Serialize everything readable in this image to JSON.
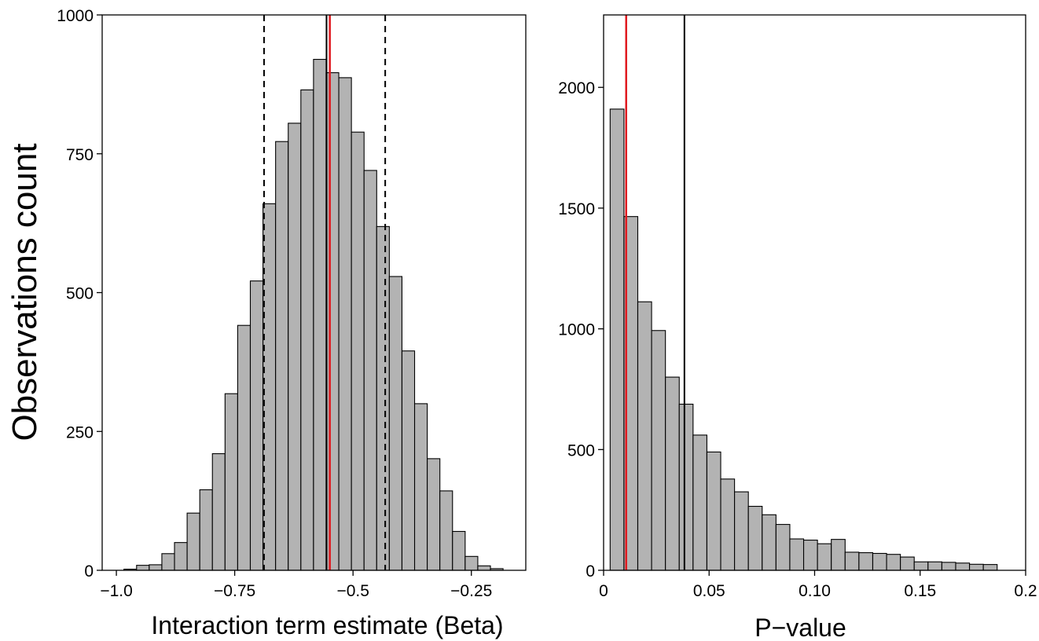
{
  "figure": {
    "ylabel": "Observations count"
  },
  "chart_data": [
    {
      "type": "bar",
      "subtype": "histogram",
      "xlabel": "Interaction term estimate (Beta)",
      "ylabel": "Observations count",
      "xlim": [
        -1.03,
        -0.135
      ],
      "ylim": [
        0,
        1000
      ],
      "xticks": [
        -1.0,
        -0.75,
        -0.5,
        -0.25
      ],
      "xtick_labels": [
        "−1.0",
        "−0.75",
        "−0.5",
        "−0.25"
      ],
      "yticks": [
        0,
        250,
        500,
        750,
        1000
      ],
      "ytick_labels": [
        "0",
        "250",
        "500",
        "750",
        "1000"
      ],
      "bin_width": 0.0267,
      "bin_start": -0.984,
      "values": [
        2,
        9,
        10,
        30,
        50,
        103,
        145,
        210,
        318,
        441,
        521,
        660,
        772,
        805,
        865,
        920,
        896,
        887,
        789,
        720,
        619,
        529,
        395,
        300,
        201,
        143,
        70,
        25,
        8,
        3
      ],
      "bar_fill": "#b3b3b3",
      "bar_stroke": "#000000",
      "vlines": [
        {
          "x": -0.688,
          "color": "#000000",
          "style": "dashed"
        },
        {
          "x": -0.432,
          "color": "#000000",
          "style": "dashed"
        },
        {
          "x": -0.556,
          "color": "#000000",
          "style": "solid"
        },
        {
          "x": -0.549,
          "color": "#e0191f",
          "style": "solid"
        }
      ],
      "grid": false,
      "legend": "none"
    },
    {
      "type": "bar",
      "subtype": "histogram",
      "xlabel": "P−value",
      "ylabel": "",
      "xlim": [
        0,
        0.2
      ],
      "ylim": [
        0,
        2300
      ],
      "xticks": [
        0,
        0.05,
        0.1,
        0.15,
        0.2
      ],
      "xtick_labels": [
        "0",
        "0.05",
        "0.10",
        "0.15",
        "0.2"
      ],
      "yticks": [
        0,
        500,
        1000,
        1500,
        2000
      ],
      "ytick_labels": [
        "0",
        "500",
        "1000",
        "1500",
        "2000"
      ],
      "bin_width": 0.00655,
      "bin_start": 0.0031,
      "values": [
        1910,
        1465,
        1112,
        993,
        800,
        688,
        560,
        490,
        378,
        325,
        265,
        230,
        190,
        130,
        125,
        110,
        128,
        75,
        73,
        70,
        66,
        55,
        35,
        35,
        33,
        30,
        25,
        24
      ],
      "bar_fill": "#b3b3b3",
      "bar_stroke": "#000000",
      "vlines": [
        {
          "x": 0.0107,
          "color": "#e0191f",
          "style": "solid"
        },
        {
          "x": 0.0383,
          "color": "#000000",
          "style": "solid"
        }
      ],
      "grid": false,
      "legend": "none"
    }
  ]
}
